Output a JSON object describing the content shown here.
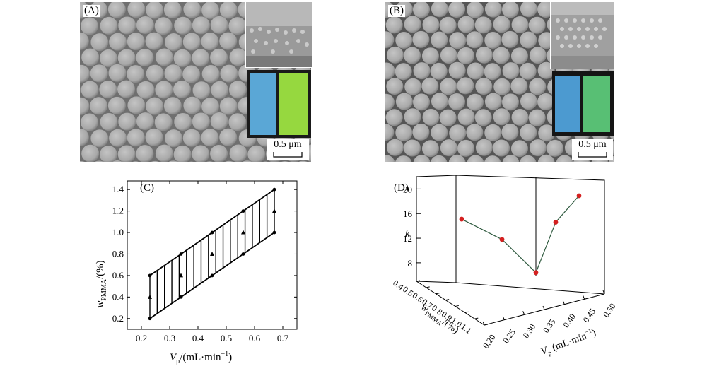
{
  "panels": {
    "a_label": "(A)",
    "b_label": "(B)",
    "c_label": "(C)",
    "d_label": "(D)",
    "scale_text": "0.5 μm"
  },
  "colors": {
    "sem_bg": "#6f6f6f",
    "sphere": "#a8a8a8",
    "film_blue": "#5aa7d6",
    "film_green": "#7ccf3a",
    "point_red": "#d42020",
    "line_green": "#2f5a3f"
  },
  "chart_data": [
    {
      "type": "line",
      "panel": "(C)",
      "xlabel_main": "V",
      "xlabel_sub": "p",
      "xlabel_rest": "/(mL·min",
      "xlabel_sup": "−1",
      "xlabel_end": ")",
      "ylabel_main": "w",
      "ylabel_sub": "PMMA",
      "ylabel_rest": "/(%)",
      "xlim": [
        0.15,
        0.75
      ],
      "ylim": [
        0.1,
        1.48
      ],
      "xticks": [
        "0.2",
        "0.3",
        "0.4",
        "0.5",
        "0.6",
        "0.7"
      ],
      "yticks": [
        "0.2",
        "0.4",
        "0.6",
        "0.8",
        "1.0",
        "1.2",
        "1.4"
      ],
      "x_points": [
        0.23,
        0.34,
        0.45,
        0.56,
        0.67
      ],
      "upper": [
        0.6,
        0.8,
        1.0,
        1.2,
        1.4
      ],
      "lower": [
        0.2,
        0.4,
        0.6,
        0.8,
        1.0
      ],
      "mid": [
        0.4,
        0.6,
        0.8,
        1.0,
        1.2
      ]
    },
    {
      "type": "scatter3d",
      "panel": "(D)",
      "zlabel": "k",
      "ylabel_main": "w",
      "ylabel_sub": "PMMA",
      "ylabel_rest": "/(%)",
      "xlabel_main": "V",
      "xlabel_sub": "p",
      "xlabel_rest": "/(mL·min",
      "xlabel_sup": "−1",
      "xlabel_end": ")",
      "zticks": [
        "8",
        "12",
        "16",
        "20"
      ],
      "yticks": [
        "0.4",
        "0.5",
        "0.6",
        "0.7",
        "0.8",
        "0.9",
        "1.0",
        "1.1"
      ],
      "xticks": [
        "0.20",
        "0.25",
        "0.30",
        "0.35",
        "0.40",
        "0.45",
        "0.50"
      ],
      "points_k": [
        15.1,
        11.8,
        6.4,
        14.6,
        18.9
      ]
    }
  ]
}
